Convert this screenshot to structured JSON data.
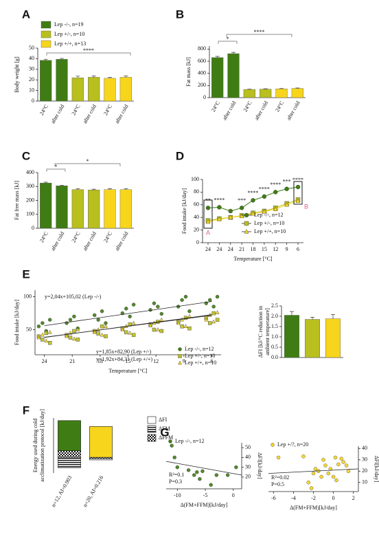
{
  "chart_data": [
    {
      "type": "bar",
      "panel": "A",
      "ylabel": "Body weight [g]",
      "categories": [
        "24°C",
        "after cold",
        "24°C",
        "after cold",
        "24°C",
        "after cold"
      ],
      "values": [
        38.5,
        39.5,
        22,
        22.5,
        21.5,
        22.5
      ],
      "errors": [
        1.0,
        0.8,
        1.5,
        1.2,
        0.8,
        1.2
      ],
      "colors": [
        "#3f7d14",
        "#3f7d14",
        "#b8bf1f",
        "#b8bf1f",
        "#f7d51c",
        "#f7d51c"
      ],
      "ylim": [
        0,
        50
      ],
      "yticks": [
        0,
        10,
        20,
        30,
        40,
        50
      ],
      "significance": [
        "****"
      ],
      "legend": [
        {
          "name": "Lep -/-, n=19",
          "color": "#3f7d14"
        },
        {
          "name": "Lep +/-, n=10",
          "color": "#b8bf1f"
        },
        {
          "name": "Lep +/+, n=13",
          "color": "#f7d51c"
        }
      ]
    },
    {
      "type": "bar",
      "panel": "B",
      "ylabel": "Fat mass [kJ]",
      "categories": [
        "24°C",
        "after cold",
        "24°C",
        "after cold",
        "24°C",
        "after cold"
      ],
      "values": [
        660,
        725,
        135,
        140,
        145,
        152
      ],
      "errors": [
        20,
        22,
        6,
        6,
        6,
        7
      ],
      "colors": [
        "#3f7d14",
        "#3f7d14",
        "#b8bf1f",
        "#b8bf1f",
        "#f7d51c",
        "#f7d51c"
      ],
      "ylim": [
        0,
        850
      ],
      "yticks": [
        0,
        200,
        400,
        600,
        800
      ],
      "significance": [
        "*",
        "****"
      ]
    },
    {
      "type": "bar",
      "panel": "C",
      "ylabel": "Fat free mass [kJ]",
      "categories": [
        "24°C",
        "after cold",
        "24°C",
        "after cold",
        "24°C",
        "after cold"
      ],
      "values": [
        325,
        305,
        278,
        275,
        278,
        278
      ],
      "errors": [
        6,
        4,
        7,
        6,
        6,
        7
      ],
      "colors": [
        "#3f7d14",
        "#3f7d14",
        "#b8bf1f",
        "#b8bf1f",
        "#f7d51c",
        "#f7d51c"
      ],
      "ylim": [
        0,
        400
      ],
      "yticks": [
        0,
        100,
        200,
        300,
        400
      ],
      "significance": [
        "*",
        "*"
      ]
    },
    {
      "type": "line",
      "panel": "D",
      "ylabel": "Food intake [kJ/day]",
      "xlabel": "Temperature [°C]",
      "categories": [
        "24",
        "24",
        "24",
        "21",
        "18",
        "15",
        "12",
        "9",
        "6"
      ],
      "series": [
        {
          "name": "Lep -/-, n=12",
          "color": "#3f7d14",
          "marker": "circle",
          "values": [
            55,
            56,
            50,
            55,
            67,
            73,
            80,
            85,
            88
          ]
        },
        {
          "name": "Lep +/-, n=10",
          "color": "#b8bf1f",
          "marker": "square",
          "values": [
            35,
            38,
            40,
            43,
            47,
            50,
            55,
            62,
            68
          ]
        },
        {
          "name": "Lep +/+, n=10",
          "color": "#f7d51c",
          "marker": "triangle",
          "values": [
            33,
            37,
            40,
            42,
            46,
            49,
            53,
            60,
            66
          ]
        }
      ],
      "ylim": [
        0,
        100
      ],
      "yticks": [
        0,
        20,
        40,
        60,
        80,
        100
      ],
      "significance": [
        "**",
        "****",
        null,
        "***",
        "****",
        "****",
        "****",
        "***",
        "****"
      ],
      "annotations": [
        "A",
        "B"
      ]
    },
    {
      "type": "scatter",
      "panel": "E",
      "ylabel": "Food intake [kJ/day]",
      "xlabel": "Temperature [°C]",
      "legend": "lower right",
      "xlim": [
        25,
        5
      ],
      "xticks": [
        24,
        21,
        18,
        15,
        12,
        9,
        6
      ],
      "ylim": [
        12,
        110
      ],
      "yticks": [
        50,
        100
      ],
      "series": [
        {
          "name": "Lep -/-, n=12",
          "color": "#3f7d14",
          "marker": "circle",
          "x": [
            24.6,
            24.2,
            23.8,
            23.4,
            21.6,
            21.2,
            20.8,
            20.4,
            18.6,
            18.2,
            17.8,
            17.4,
            15.6,
            15.2,
            14.8,
            14.4,
            12.6,
            12.2,
            11.8,
            11.4,
            9.6,
            9.2,
            8.8,
            8.4,
            6.6,
            6.2,
            5.8,
            5.4
          ],
          "values": [
            55,
            60,
            48,
            65,
            60,
            65,
            70,
            52,
            72,
            65,
            78,
            60,
            75,
            82,
            70,
            88,
            80,
            90,
            85,
            74,
            85,
            95,
            100,
            78,
            90,
            95,
            85,
            100
          ],
          "fit": {
            "label": "y=2,04x+105,02 (Lep -/-)",
            "slope": 2.04,
            "intercept": 105.02
          }
        },
        {
          "name": "Lep +/-, n=10",
          "color": "#b8bf1f",
          "marker": "square",
          "x": [
            24.6,
            24.2,
            23.8,
            23.4,
            21.6,
            21.2,
            20.8,
            20.4,
            18.6,
            18.2,
            17.8,
            17.4,
            15.6,
            15.2,
            14.8,
            14.4,
            12.6,
            12.2,
            11.8,
            11.4,
            9.6,
            9.2,
            8.8,
            8.4,
            6.6,
            6.2,
            5.8,
            5.4
          ],
          "values": [
            40,
            35,
            45,
            30,
            42,
            38,
            48,
            35,
            48,
            44,
            55,
            40,
            52,
            46,
            58,
            42,
            58,
            50,
            62,
            48,
            62,
            55,
            68,
            52,
            68,
            60,
            75,
            65
          ],
          "fit": {
            "label": "y=1,85x+82,90 (Lep +/-)",
            "slope": 1.85,
            "intercept": 82.9
          }
        },
        {
          "name": "Lep +/+, n=10",
          "color": "#f7d51c",
          "marker": "triangle",
          "x": [
            24.6,
            24.2,
            23.8,
            23.4,
            21.6,
            21.2,
            20.8,
            20.4,
            18.6,
            18.2,
            17.8,
            17.4,
            15.6,
            15.2,
            14.8,
            14.4,
            12.6,
            12.2,
            11.8,
            11.4,
            9.6,
            9.2,
            8.8,
            8.4,
            6.6,
            6.2,
            5.8,
            5.4
          ],
          "values": [
            38,
            42,
            33,
            46,
            40,
            45,
            36,
            50,
            46,
            50,
            42,
            55,
            50,
            55,
            45,
            60,
            56,
            60,
            50,
            65,
            60,
            65,
            55,
            70,
            65,
            72,
            62,
            76
          ],
          "fit": {
            "label": "y=1,92x+84,31 (Lep +/+)",
            "slope": 1.92,
            "intercept": 84.31
          }
        }
      ]
    },
    {
      "type": "bar",
      "ylabel": [
        "ΔFI [kJ/°C reduction in",
        "ambient temperature]"
      ],
      "categories": [
        null,
        null,
        null
      ],
      "values": [
        2.05,
        1.85,
        1.88
      ],
      "errors": [
        0.18,
        0.1,
        0.2
      ],
      "colors": [
        "#3f7d14",
        "#b8bf1f",
        "#f7d51c"
      ],
      "ylim": [
        0,
        2.5
      ],
      "yticks": [
        {
          "value": 0,
          "label": "0.0"
        },
        0.5,
        {
          "value": 1,
          "label": "1.0"
        },
        1.5,
        {
          "value": 2,
          "label": "2.0"
        },
        2.5
      ]
    },
    {
      "type": "stacked_bar",
      "panel": "F",
      "ylabel": [
        "Energy used during cold",
        "acclimatization protocol [kJ/day]"
      ],
      "categories": [
        "n=12, AI=0.903",
        "n=20, AI=0.216"
      ],
      "series": [
        {
          "name": "ΔFI",
          "pattern": "solid",
          "colors": [
            "#3f7d14",
            "#f7d51c"
          ],
          "values": [
            23,
            23.5
          ]
        },
        {
          "name": "ΔFM",
          "pattern": "hlines",
          "values": [
            -8,
            -1
          ]
        },
        {
          "name": "ΔFFM",
          "pattern": "checker",
          "values": [
            5,
            -1
          ]
        }
      ],
      "ylim": [
        -12,
        30
      ]
    },
    {
      "type": "scatter",
      "panel": "G",
      "y_axis": "right",
      "legend": "upper left",
      "xlabel": "Δ(FM+FFM)[kJ/day]",
      "ylabel": "ΔFI[kJ/day]",
      "xlim": [
        -12,
        1.5
      ],
      "xticks": [
        -10,
        -5,
        0
      ],
      "ylim": [
        8,
        55
      ],
      "yticks": [
        20,
        30,
        40,
        50
      ],
      "series": [
        {
          "name": "Lep -/-, n=12",
          "color": "#3f7d14",
          "marker": "circle",
          "x": [
            -11,
            -10.5,
            -10,
            -8,
            -7,
            -6.5,
            -6,
            -5.5,
            -4,
            -3,
            -1,
            0.5
          ],
          "values": [
            52,
            40,
            30,
            27,
            22,
            25,
            18,
            26,
            12,
            22,
            22,
            30
          ]
        }
      ],
      "fit_line": [
        36,
        22
      ],
      "stats": [
        "R²=0.1",
        "P=0.3"
      ]
    },
    {
      "type": "scatter",
      "y_axis": "right",
      "legend": "upper left",
      "xlabel": "Δ(FM+FFM)[kJ/day]",
      "ylabel": "ΔFI[kJ/day]",
      "xlim": [
        -6.5,
        2.5
      ],
      "xticks": [
        -6,
        -4,
        -2,
        0,
        2
      ],
      "ylim": [
        2,
        42
      ],
      "yticks": [
        10,
        20,
        30,
        40
      ],
      "series": [
        {
          "name": "Lep +/?, n=20",
          "color": "#f7d51c",
          "marker": "circle",
          "x": [
            -5.5,
            -3,
            -2.5,
            -2,
            -1.8,
            -1.5,
            -1,
            -0.8,
            -0.5,
            -0.3,
            0,
            0.2,
            0.5,
            0.8,
            1,
            1.3,
            1.5,
            -2.2,
            -1.2,
            0.3
          ],
          "values": [
            32,
            33,
            10,
            18,
            22,
            20,
            30,
            25,
            18,
            22,
            15,
            32,
            26,
            31,
            28,
            25,
            20,
            5,
            15,
            12
          ]
        }
      ],
      "fit_line": [
        18,
        22
      ],
      "stats": [
        "R²=0.02",
        "P=0.5"
      ]
    }
  ]
}
